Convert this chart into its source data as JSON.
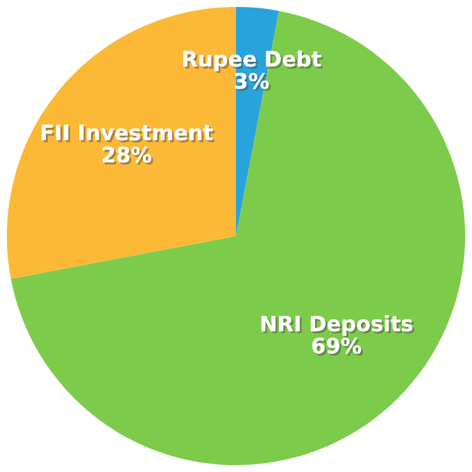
{
  "chart_data": {
    "type": "pie",
    "categories": [
      "Rupee Debt",
      "NRI Deposits",
      "FII Investment"
    ],
    "values": [
      3,
      69,
      28
    ],
    "colors": [
      "#29a3dc",
      "#7dcb4b",
      "#fbb937"
    ],
    "value_labels": [
      "3%",
      "69%",
      "28%"
    ],
    "legend": false
  }
}
